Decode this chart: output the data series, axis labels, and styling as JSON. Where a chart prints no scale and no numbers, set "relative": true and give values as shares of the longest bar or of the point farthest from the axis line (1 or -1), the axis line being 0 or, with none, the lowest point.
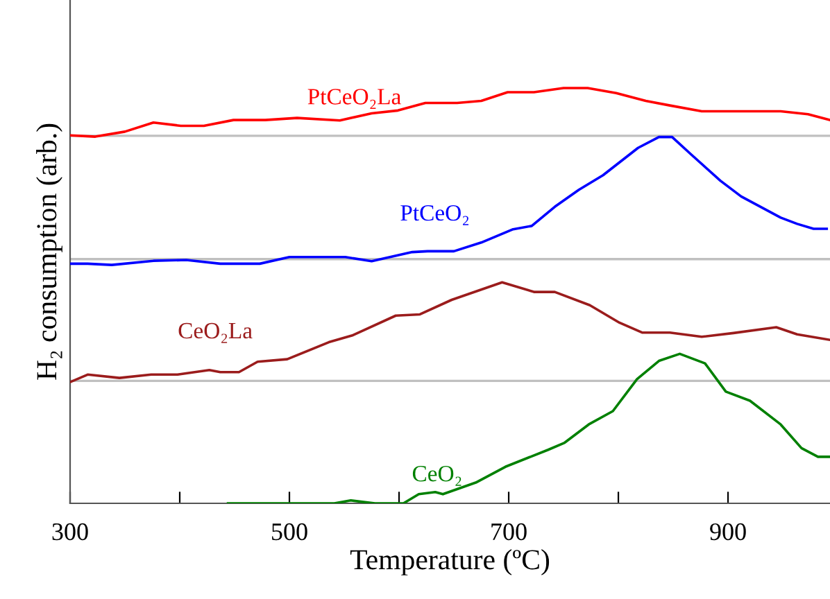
{
  "chart_data": {
    "type": "line",
    "relative": true,
    "xlabel": "Temperature (ºC)",
    "ylabel": "H₂ consumption (arb.)",
    "xlim": [
      300,
      993
    ],
    "xticks": [
      300,
      {
        "value": 400,
        "label": null
      },
      500,
      {
        "value": 600,
        "label": null
      },
      700,
      {
        "value": 800,
        "label": null
      },
      900
    ],
    "tick_labels": "x",
    "grid": false,
    "legend": false,
    "marker": "none",
    "line_style": "solid",
    "ref_lines": [
      {
        "axis": "y",
        "value": 0.885,
        "color": "#c0c0c0"
      },
      {
        "axis": "y",
        "value": 0.588,
        "color": "#c0c0c0"
      },
      {
        "axis": "y",
        "value": 0.295,
        "color": "#c0c0c0"
      }
    ],
    "series": [
      {
        "name": "PtCeO₂La",
        "color": "#ff0000",
        "x": [
          300,
          323,
          350,
          376,
          401,
          422,
          449,
          478,
          507,
          546,
          575,
          599,
          624,
          653,
          675,
          699,
          723,
          750,
          772,
          798,
          825,
          847,
          876,
          948,
          973,
          993
        ],
        "values": [
          0.886,
          0.883,
          0.895,
          0.917,
          0.909,
          0.909,
          0.923,
          0.923,
          0.928,
          0.922,
          0.939,
          0.946,
          0.964,
          0.964,
          0.969,
          0.99,
          0.99,
          1.0,
          1.0,
          0.988,
          0.969,
          0.958,
          0.944,
          0.944,
          0.937,
          0.923
        ]
      },
      {
        "name": "PtCeO₂",
        "color": "#0000ff",
        "x": [
          300,
          316,
          338,
          376,
          406,
          437,
          473,
          500,
          551,
          575,
          612,
          626,
          650,
          675,
          704,
          721,
          742,
          764,
          786,
          818,
          837,
          849,
          866,
          893,
          912,
          948,
          963,
          978,
          990
        ],
        "values": [
          0.577,
          0.577,
          0.574,
          0.584,
          0.586,
          0.577,
          0.577,
          0.593,
          0.593,
          0.583,
          0.605,
          0.607,
          0.607,
          0.628,
          0.66,
          0.668,
          0.714,
          0.755,
          0.79,
          0.856,
          0.882,
          0.882,
          0.841,
          0.777,
          0.739,
          0.688,
          0.673,
          0.661,
          0.661
        ]
      },
      {
        "name": "CeO₂La",
        "color": "#9b1c1c",
        "x": [
          300,
          316,
          345,
          374,
          398,
          427,
          437,
          454,
          471,
          498,
          536,
          558,
          597,
          619,
          648,
          694,
          723,
          742,
          774,
          801,
          822,
          847,
          876,
          905,
          944,
          963,
          992
        ],
        "values": [
          0.292,
          0.31,
          0.302,
          0.31,
          0.31,
          0.321,
          0.316,
          0.316,
          0.341,
          0.347,
          0.388,
          0.405,
          0.452,
          0.455,
          0.49,
          0.532,
          0.509,
          0.509,
          0.477,
          0.435,
          0.411,
          0.411,
          0.401,
          0.41,
          0.424,
          0.407,
          0.394
        ]
      },
      {
        "name": "CeO₂",
        "color": "#008000",
        "x": [
          444,
          500,
          541,
          556,
          578,
          604,
          618,
          633,
          640,
          670,
          697,
          736,
          751,
          773,
          795,
          817,
          837,
          856,
          879,
          898,
          920,
          948,
          967,
          982,
          993
        ],
        "values": [
          0,
          0,
          0,
          0.007,
          0,
          0,
          0.022,
          0.027,
          0.022,
          0.05,
          0.088,
          0.129,
          0.146,
          0.19,
          0.222,
          0.299,
          0.343,
          0.36,
          0.337,
          0.269,
          0.247,
          0.19,
          0.133,
          0.112,
          0.112
        ]
      }
    ]
  }
}
